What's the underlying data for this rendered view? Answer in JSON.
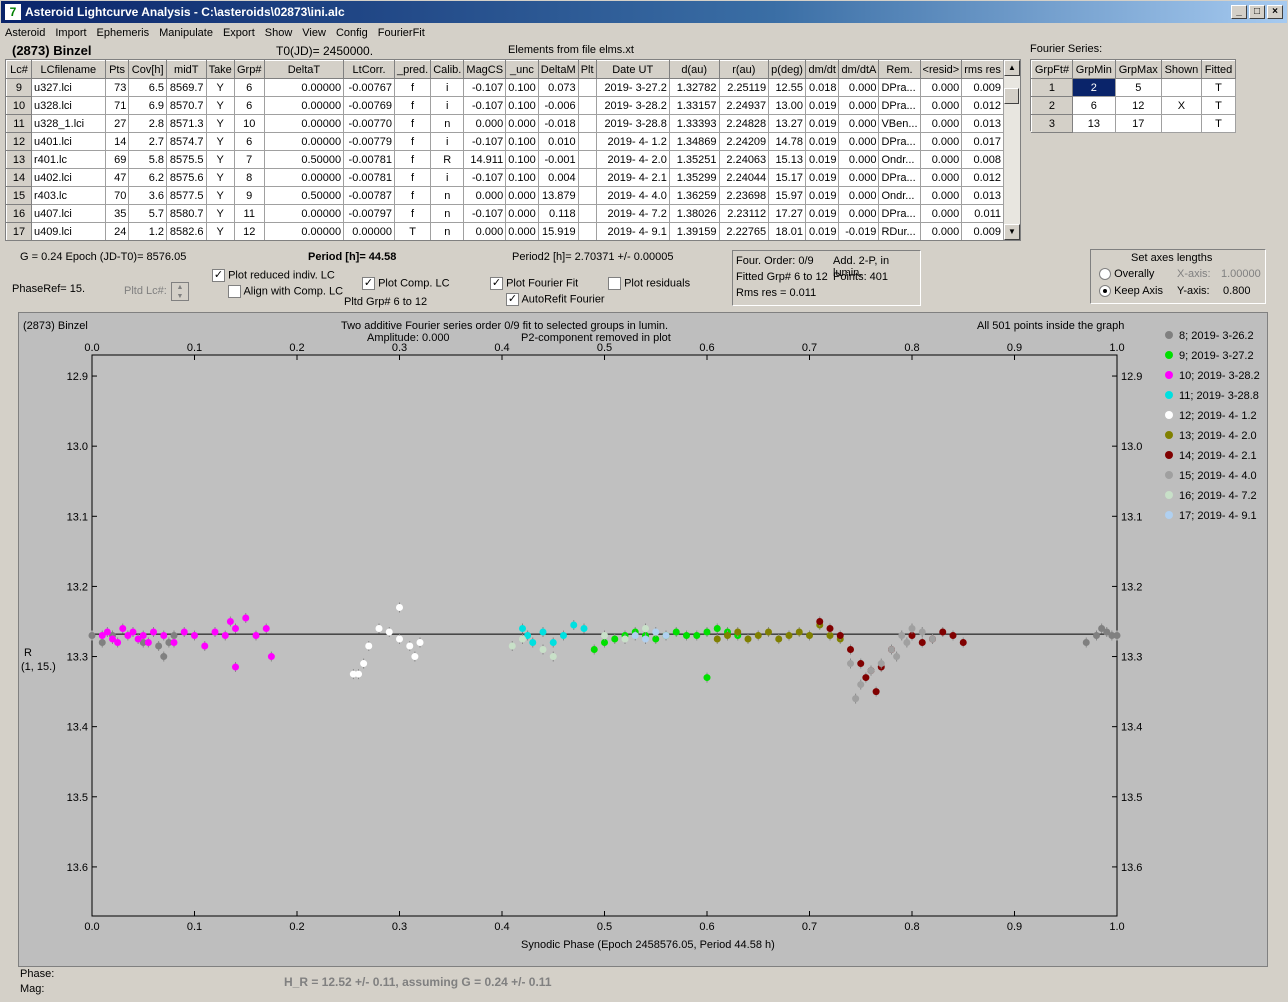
{
  "window": {
    "title": "Asteroid Lightcurve Analysis - C:\\asteroids\\02873\\ini.alc",
    "icon_text": "7"
  },
  "menu": [
    "Asteroid",
    "Import",
    "Ephemeris",
    "Manipulate",
    "Export",
    "Show",
    "View",
    "Config",
    "FourierFit"
  ],
  "header": {
    "asteroid": "(2873) Binzel",
    "t0": "T0(JD)= 2450000.",
    "elements": "Elements from file elms.xt",
    "fourier_label": "Fourier Series:"
  },
  "lc_table": {
    "columns": [
      "Lc#",
      "LCfilename",
      "Pts",
      "Cov[h]",
      "midT",
      "Take",
      "Grp#",
      "DeltaT",
      "LtCorr.",
      "_pred.",
      "Calib.",
      "MagCS",
      "_unc",
      "DeltaM",
      "Plt",
      "Date UT",
      "d(au)",
      "r(au)",
      "p(deg)",
      "dm/dt",
      "dm/dtA",
      "Rem.",
      "<resid>",
      "rms res"
    ],
    "rows": [
      [
        "9",
        "u327.lci",
        "73",
        "6.5",
        "8569.7",
        "Y",
        "6",
        "0.00000",
        "-0.00767",
        "f",
        "i",
        "-0.107",
        "0.100",
        "0.073",
        "",
        "2019- 3-27.2",
        "1.32782",
        "2.25119",
        "12.55",
        "0.018",
        "0.000",
        "DPra...",
        "0.000",
        "0.009"
      ],
      [
        "10",
        "u328.lci",
        "71",
        "6.9",
        "8570.7",
        "Y",
        "6",
        "0.00000",
        "-0.00769",
        "f",
        "i",
        "-0.107",
        "0.100",
        "-0.006",
        "",
        "2019- 3-28.2",
        "1.33157",
        "2.24937",
        "13.00",
        "0.019",
        "0.000",
        "DPra...",
        "0.000",
        "0.012"
      ],
      [
        "11",
        "u328_1.lci",
        "27",
        "2.8",
        "8571.3",
        "Y",
        "10",
        "0.00000",
        "-0.00770",
        "f",
        "n",
        "0.000",
        "0.000",
        "-0.018",
        "",
        "2019- 3-28.8",
        "1.33393",
        "2.24828",
        "13.27",
        "0.019",
        "0.000",
        "VBen...",
        "0.000",
        "0.013"
      ],
      [
        "12",
        "u401.lci",
        "14",
        "2.7",
        "8574.7",
        "Y",
        "6",
        "0.00000",
        "-0.00779",
        "f",
        "i",
        "-0.107",
        "0.100",
        "0.010",
        "",
        "2019- 4- 1.2",
        "1.34869",
        "2.24209",
        "14.78",
        "0.019",
        "0.000",
        "DPra...",
        "0.000",
        "0.017"
      ],
      [
        "13",
        "r401.lc",
        "69",
        "5.8",
        "8575.5",
        "Y",
        "7",
        "0.50000",
        "-0.00781",
        "f",
        "R",
        "14.911",
        "0.100",
        "-0.001",
        "",
        "2019- 4- 2.0",
        "1.35251",
        "2.24063",
        "15.13",
        "0.019",
        "0.000",
        "Ondr...",
        "0.000",
        "0.008"
      ],
      [
        "14",
        "u402.lci",
        "47",
        "6.2",
        "8575.6",
        "Y",
        "8",
        "0.00000",
        "-0.00781",
        "f",
        "i",
        "-0.107",
        "0.100",
        "0.004",
        "",
        "2019- 4- 2.1",
        "1.35299",
        "2.24044",
        "15.17",
        "0.019",
        "0.000",
        "DPra...",
        "0.000",
        "0.012"
      ],
      [
        "15",
        "r403.lc",
        "70",
        "3.6",
        "8577.5",
        "Y",
        "9",
        "0.50000",
        "-0.00787",
        "f",
        "n",
        "0.000",
        "0.000",
        "13.879",
        "",
        "2019- 4- 4.0",
        "1.36259",
        "2.23698",
        "15.97",
        "0.019",
        "0.000",
        "Ondr...",
        "0.000",
        "0.013"
      ],
      [
        "16",
        "u407.lci",
        "35",
        "5.7",
        "8580.7",
        "Y",
        "11",
        "0.00000",
        "-0.00797",
        "f",
        "n",
        "-0.107",
        "0.000",
        "0.118",
        "",
        "2019- 4- 7.2",
        "1.38026",
        "2.23112",
        "17.27",
        "0.019",
        "0.000",
        "DPra...",
        "0.000",
        "0.011"
      ],
      [
        "17",
        "u409.lci",
        "24",
        "1.2",
        "8582.6",
        "Y",
        "12",
        "0.00000",
        "0.00000",
        "T",
        "n",
        "0.000",
        "0.000",
        "15.919",
        "",
        "2019- 4- 9.1",
        "1.39159",
        "2.22765",
        "18.01",
        "0.019",
        "-0.019",
        "RDur...",
        "0.000",
        "0.009"
      ]
    ]
  },
  "fourier_table": {
    "columns": [
      "GrpFt#",
      "GrpMin",
      "GrpMax",
      "Shown",
      "Fitted"
    ],
    "rows": [
      [
        "1",
        "2",
        "5",
        "",
        "T"
      ],
      [
        "2",
        "6",
        "12",
        "X",
        "T"
      ],
      [
        "3",
        "13",
        "17",
        "",
        "T"
      ]
    ]
  },
  "controls": {
    "g_epoch": "G = 0.24    Epoch (JD-T0)= 8576.05",
    "phaseref": "PhaseRef= 15.",
    "pltd_lc": "Pltd Lc#:",
    "plot_reduced": "Plot reduced indiv. LC",
    "align": "Align with Comp. LC",
    "plot_comp": "Plot Comp. LC",
    "pltd_grp": "Pltd Grp#  6   to   12",
    "period": "Period [h]= 44.58",
    "period2": "Period2 [h]= 2.70371 +/- 0.00005",
    "plot_fourier": "Plot Fourier Fit",
    "autorefit": "AutoRefit Fourier",
    "plot_residuals": "Plot residuals",
    "four_order": "Four. Order:  0/9",
    "add2p": "Add. 2-P, in lumin.",
    "fitted_grp": "Fitted Grp# 6 to 12",
    "points": "Points: 401",
    "rms": "Rms res      = 0.011",
    "axes_title": "Set axes lengths",
    "overally": "Overally",
    "keep_axis": "Keep Axis",
    "xaxis": "X-axis:",
    "xaxis_val": "1.00000",
    "yaxis": "Y-axis:",
    "yaxis_val": "0.800"
  },
  "plot": {
    "asteroid": "(2873) Binzel",
    "subtitle1": "Two additive Fourier series order 0/9 fit to selected groups in lumin.",
    "subtitle2": "Amplitude: 0.000",
    "subtitle3": "P2-component removed in plot",
    "inside": "All 501 points inside the graph",
    "ylabel1": "R",
    "ylabel2": "(1, 15.)",
    "xlabel": "Synodic Phase (Epoch 2458576.05, Period 44.58 h)",
    "footer_phase": "Phase:",
    "footer_mag": "Mag:",
    "hr": "H_R = 12.52 +/- 0.11, assuming G = 0.24 +/- 0.11"
  },
  "chart_data": {
    "type": "scatter",
    "xlim": [
      0,
      1
    ],
    "ylim": [
      13.67,
      12.87
    ],
    "y_inverted": true,
    "x_ticks": [
      "0.0",
      "0.1",
      "0.2",
      "0.3",
      "0.4",
      "0.5",
      "0.6",
      "0.7",
      "0.8",
      "0.9",
      "1.0"
    ],
    "y_ticks": [
      "12.9",
      "13.0",
      "13.1",
      "13.2",
      "13.3",
      "13.4",
      "13.5",
      "13.6"
    ],
    "fit_line_y": 13.268,
    "series": [
      {
        "name": "8; 2019- 3-26.2",
        "color": "#808080",
        "points": [
          [
            0.0,
            13.27
          ],
          [
            0.01,
            13.28
          ],
          [
            0.02,
            13.27
          ],
          [
            0.05,
            13.28
          ],
          [
            0.065,
            13.285
          ],
          [
            0.07,
            13.3
          ],
          [
            0.075,
            13.28
          ],
          [
            0.08,
            13.27
          ],
          [
            0.97,
            13.28
          ],
          [
            0.98,
            13.27
          ],
          [
            0.99,
            13.265
          ],
          [
            1.0,
            13.27
          ],
          [
            0.985,
            13.26
          ],
          [
            0.995,
            13.27
          ]
        ]
      },
      {
        "name": "9; 2019- 3-27.2",
        "color": "#00e000",
        "points": [
          [
            0.49,
            13.29
          ],
          [
            0.5,
            13.28
          ],
          [
            0.51,
            13.275
          ],
          [
            0.52,
            13.27
          ],
          [
            0.53,
            13.265
          ],
          [
            0.54,
            13.27
          ],
          [
            0.55,
            13.275
          ],
          [
            0.56,
            13.27
          ],
          [
            0.57,
            13.265
          ],
          [
            0.58,
            13.27
          ],
          [
            0.59,
            13.27
          ],
          [
            0.6,
            13.265
          ],
          [
            0.6,
            13.33
          ],
          [
            0.61,
            13.26
          ],
          [
            0.62,
            13.265
          ],
          [
            0.63,
            13.27
          ]
        ]
      },
      {
        "name": "10; 2019- 3-28.2",
        "color": "#ff00ff",
        "points": [
          [
            0.01,
            13.27
          ],
          [
            0.015,
            13.265
          ],
          [
            0.02,
            13.275
          ],
          [
            0.025,
            13.28
          ],
          [
            0.03,
            13.26
          ],
          [
            0.035,
            13.27
          ],
          [
            0.04,
            13.265
          ],
          [
            0.045,
            13.275
          ],
          [
            0.05,
            13.27
          ],
          [
            0.055,
            13.28
          ],
          [
            0.06,
            13.265
          ],
          [
            0.07,
            13.27
          ],
          [
            0.08,
            13.28
          ],
          [
            0.09,
            13.265
          ],
          [
            0.1,
            13.27
          ],
          [
            0.11,
            13.285
          ],
          [
            0.12,
            13.265
          ],
          [
            0.13,
            13.27
          ],
          [
            0.135,
            13.25
          ],
          [
            0.14,
            13.26
          ],
          [
            0.15,
            13.245
          ],
          [
            0.16,
            13.27
          ],
          [
            0.17,
            13.26
          ],
          [
            0.14,
            13.315
          ],
          [
            0.175,
            13.3
          ]
        ]
      },
      {
        "name": "11; 2019- 3-28.8",
        "color": "#00e0e0",
        "points": [
          [
            0.42,
            13.26
          ],
          [
            0.425,
            13.27
          ],
          [
            0.43,
            13.28
          ],
          [
            0.44,
            13.265
          ],
          [
            0.45,
            13.28
          ],
          [
            0.46,
            13.27
          ],
          [
            0.47,
            13.255
          ],
          [
            0.48,
            13.26
          ]
        ]
      },
      {
        "name": "12; 2019- 4- 1.2",
        "color": "#ffffff",
        "points": [
          [
            0.255,
            13.325
          ],
          [
            0.26,
            13.325
          ],
          [
            0.265,
            13.31
          ],
          [
            0.27,
            13.285
          ],
          [
            0.28,
            13.26
          ],
          [
            0.29,
            13.265
          ],
          [
            0.3,
            13.275
          ],
          [
            0.3,
            13.23
          ],
          [
            0.31,
            13.285
          ],
          [
            0.315,
            13.3
          ],
          [
            0.32,
            13.28
          ]
        ]
      },
      {
        "name": "13; 2019- 4- 2.0",
        "color": "#808000",
        "points": [
          [
            0.61,
            13.275
          ],
          [
            0.62,
            13.27
          ],
          [
            0.63,
            13.265
          ],
          [
            0.64,
            13.275
          ],
          [
            0.65,
            13.27
          ],
          [
            0.66,
            13.265
          ],
          [
            0.67,
            13.275
          ],
          [
            0.68,
            13.27
          ],
          [
            0.69,
            13.265
          ],
          [
            0.7,
            13.27
          ],
          [
            0.71,
            13.255
          ],
          [
            0.72,
            13.27
          ],
          [
            0.73,
            13.275
          ]
        ]
      },
      {
        "name": "14; 2019- 4- 2.1",
        "color": "#800000",
        "points": [
          [
            0.71,
            13.25
          ],
          [
            0.72,
            13.26
          ],
          [
            0.73,
            13.27
          ],
          [
            0.74,
            13.29
          ],
          [
            0.75,
            13.31
          ],
          [
            0.755,
            13.33
          ],
          [
            0.76,
            13.32
          ],
          [
            0.765,
            13.35
          ],
          [
            0.77,
            13.315
          ],
          [
            0.78,
            13.29
          ],
          [
            0.8,
            13.27
          ],
          [
            0.81,
            13.28
          ],
          [
            0.82,
            13.275
          ],
          [
            0.83,
            13.265
          ],
          [
            0.84,
            13.27
          ],
          [
            0.85,
            13.28
          ]
        ]
      },
      {
        "name": "15; 2019- 4- 4.0",
        "color": "#a0a0a0",
        "points": [
          [
            0.75,
            13.34
          ],
          [
            0.76,
            13.32
          ],
          [
            0.77,
            13.31
          ],
          [
            0.78,
            13.29
          ],
          [
            0.79,
            13.27
          ],
          [
            0.8,
            13.26
          ],
          [
            0.81,
            13.265
          ],
          [
            0.82,
            13.275
          ],
          [
            0.74,
            13.31
          ],
          [
            0.745,
            13.36
          ],
          [
            0.785,
            13.3
          ],
          [
            0.795,
            13.28
          ]
        ]
      },
      {
        "name": "16; 2019- 4- 7.2",
        "color": "#c8e0c8",
        "points": [
          [
            0.41,
            13.285
          ],
          [
            0.42,
            13.275
          ],
          [
            0.44,
            13.29
          ],
          [
            0.45,
            13.3
          ],
          [
            0.5,
            13.27
          ],
          [
            0.52,
            13.275
          ],
          [
            0.54,
            13.26
          ]
        ]
      },
      {
        "name": "17; 2019- 4- 9.1",
        "color": "#b0d0f0",
        "points": [
          [
            0.53,
            13.27
          ],
          [
            0.54,
            13.275
          ],
          [
            0.55,
            13.265
          ],
          [
            0.56,
            13.27
          ]
        ]
      }
    ]
  }
}
